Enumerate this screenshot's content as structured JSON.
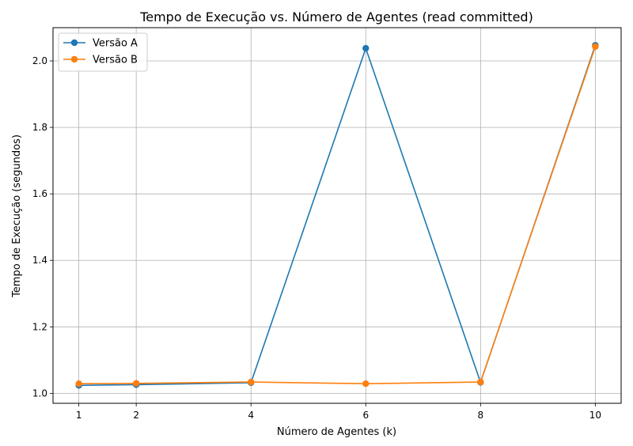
{
  "chart_data": {
    "type": "line",
    "title": "Tempo de Execução vs. Número de Agentes (read committed)",
    "xlabel": "Número de Agentes (k)",
    "ylabel": "Tempo de Execução (segundos)",
    "x": [
      1,
      2,
      4,
      6,
      8,
      10
    ],
    "xticks": [
      "1",
      "2",
      "4",
      "6",
      "8",
      "10"
    ],
    "yticks": [
      "1.0",
      "1.2",
      "1.4",
      "1.6",
      "1.8",
      "2.0"
    ],
    "xlim": [
      0.55,
      10.45
    ],
    "ylim": [
      0.97,
      2.1
    ],
    "grid": true,
    "legend": "upper-left",
    "series": [
      {
        "name": "Versão A",
        "color": "#1f77b4",
        "values": [
          1.024,
          1.026,
          1.032,
          2.038,
          1.033,
          2.047
        ]
      },
      {
        "name": "Versão B",
        "color": "#ff7f0e",
        "values": [
          1.029,
          1.03,
          1.034,
          1.029,
          1.034,
          2.043
        ]
      }
    ]
  }
}
